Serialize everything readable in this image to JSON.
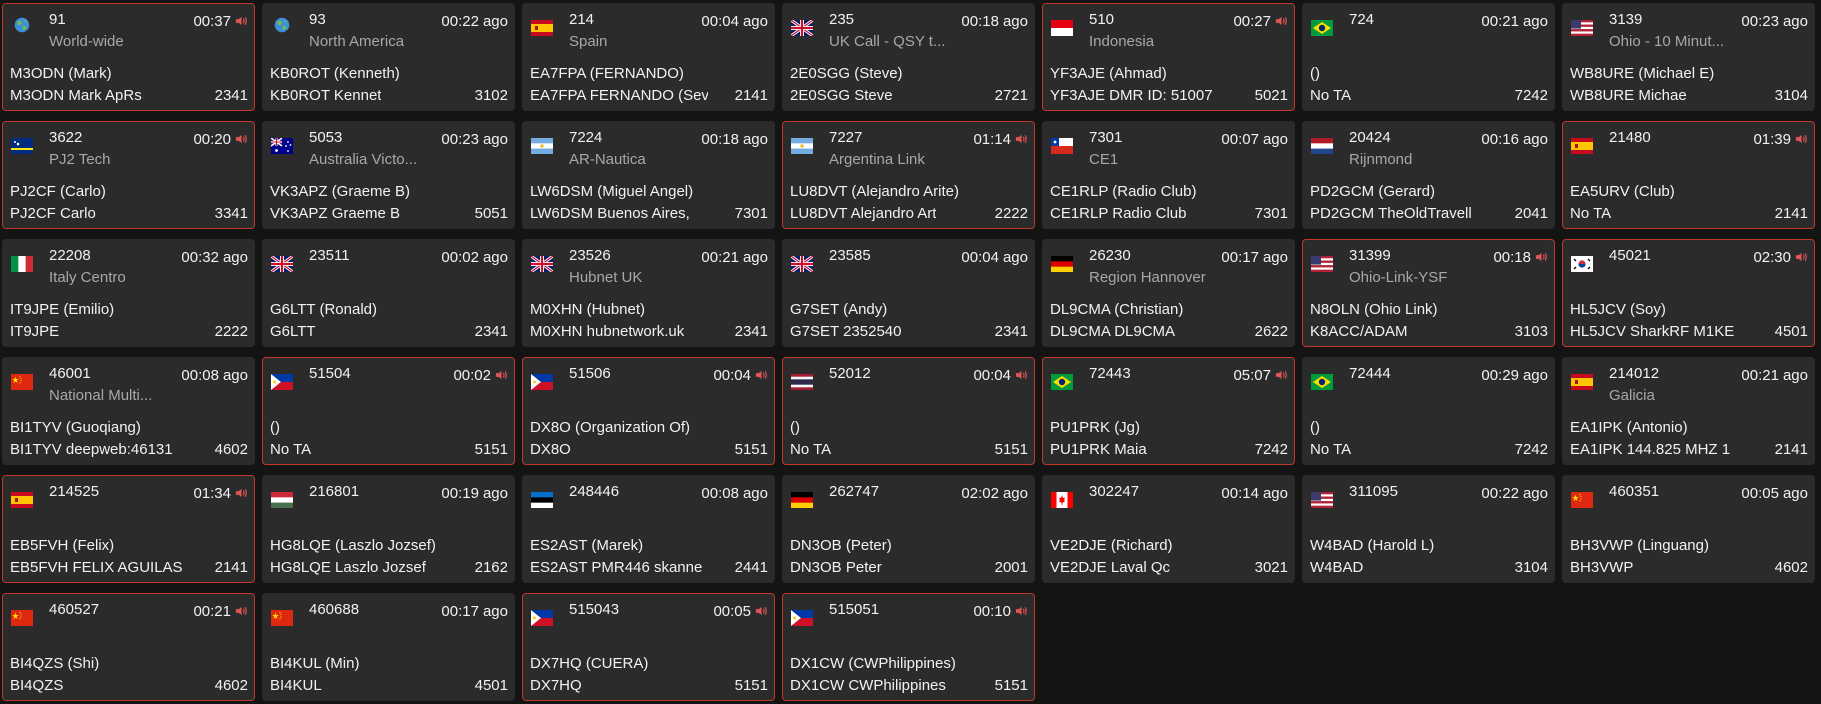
{
  "accent_active_border": "#c0392b",
  "cards": [
    {
      "tg": "91",
      "tg_name": "World-wide",
      "time": "00:37",
      "ago": "",
      "talking": true,
      "flag": "globe-icon",
      "callsign": "M3ODN (Mark)",
      "ta": "M3ODN Mark ApRs",
      "id": "2341"
    },
    {
      "tg": "93",
      "tg_name": "North America",
      "time": "00:22",
      "ago": "ago",
      "talking": false,
      "flag": "globe-icon",
      "callsign": "KB0ROT (Kenneth)",
      "ta": "KB0ROT Kennet",
      "id": "3102"
    },
    {
      "tg": "214",
      "tg_name": "Spain",
      "time": "00:04",
      "ago": "ago",
      "talking": false,
      "flag": "flag-es",
      "callsign": "EA7FPA (FERNANDO)",
      "ta": "EA7FPA FERNANDO (Sev",
      "id": "2141"
    },
    {
      "tg": "235",
      "tg_name": "UK Call - QSY t...",
      "time": "00:18",
      "ago": "ago",
      "talking": false,
      "flag": "flag-gb",
      "callsign": "2E0SGG (Steve)",
      "ta": "2E0SGG Steve",
      "id": "2721"
    },
    {
      "tg": "510",
      "tg_name": "Indonesia",
      "time": "00:27",
      "ago": "",
      "talking": true,
      "flag": "flag-id",
      "callsign": "YF3AJE (Ahmad)",
      "ta": "YF3AJE DMR ID: 51007",
      "id": "5021"
    },
    {
      "tg": "724",
      "tg_name": "",
      "time": "00:21",
      "ago": "ago",
      "talking": false,
      "flag": "flag-br",
      "callsign": "()",
      "ta": "No TA",
      "id": "7242"
    },
    {
      "tg": "3139",
      "tg_name": "Ohio - 10 Minut...",
      "time": "00:23",
      "ago": "ago",
      "talking": false,
      "flag": "flag-us",
      "callsign": "WB8URE (Michael E)",
      "ta": "WB8URE Michae",
      "id": "3104"
    },
    {
      "tg": "3622",
      "tg_name": "PJ2 Tech",
      "time": "00:20",
      "ago": "",
      "talking": true,
      "flag": "flag-cw",
      "callsign": "PJ2CF (Carlo)",
      "ta": "PJ2CF Carlo",
      "id": "3341"
    },
    {
      "tg": "5053",
      "tg_name": "Australia Victo...",
      "time": "00:23",
      "ago": "ago",
      "talking": false,
      "flag": "flag-au",
      "callsign": "VK3APZ (Graeme B)",
      "ta": "VK3APZ Graeme B",
      "id": "5051"
    },
    {
      "tg": "7224",
      "tg_name": "AR-Nautica",
      "time": "00:18",
      "ago": "ago",
      "talking": false,
      "flag": "flag-ar",
      "callsign": "LW6DSM (Miguel Angel)",
      "ta": "LW6DSM Buenos Aires,",
      "id": "7301"
    },
    {
      "tg": "7227",
      "tg_name": "Argentina Link",
      "time": "01:14",
      "ago": "",
      "talking": true,
      "flag": "flag-ar",
      "callsign": "LU8DVT (Alejandro Arite)",
      "ta": "LU8DVT Alejandro Art",
      "id": "2222"
    },
    {
      "tg": "7301",
      "tg_name": "CE1",
      "time": "00:07",
      "ago": "ago",
      "talking": false,
      "flag": "flag-cl",
      "callsign": "CE1RLP (Radio Club)",
      "ta": "CE1RLP Radio Club",
      "id": "7301"
    },
    {
      "tg": "20424",
      "tg_name": "Rijnmond",
      "time": "00:16",
      "ago": "ago",
      "talking": false,
      "flag": "flag-nl",
      "callsign": "PD2GCM (Gerard)",
      "ta": "PD2GCM TheOldTravell",
      "id": "2041"
    },
    {
      "tg": "21480",
      "tg_name": "",
      "time": "01:39",
      "ago": "",
      "talking": true,
      "flag": "flag-es",
      "callsign": "EA5URV (Club)",
      "ta": "No TA",
      "id": "2141"
    },
    {
      "tg": "22208",
      "tg_name": "Italy Centro",
      "time": "00:32",
      "ago": "ago",
      "talking": false,
      "flag": "flag-it",
      "callsign": "IT9JPE (Emilio)",
      "ta": "IT9JPE",
      "id": "2222"
    },
    {
      "tg": "23511",
      "tg_name": "",
      "time": "00:02",
      "ago": "ago",
      "talking": false,
      "flag": "flag-gb",
      "callsign": "G6LTT (Ronald)",
      "ta": "G6LTT",
      "id": "2341"
    },
    {
      "tg": "23526",
      "tg_name": "Hubnet UK",
      "time": "00:21",
      "ago": "ago",
      "talking": false,
      "flag": "flag-gb",
      "callsign": "M0XHN (Hubnet)",
      "ta": "M0XHN hubnetwork.uk",
      "id": "2341"
    },
    {
      "tg": "23585",
      "tg_name": "",
      "time": "00:04",
      "ago": "ago",
      "talking": false,
      "flag": "flag-gb",
      "callsign": "G7SET (Andy)",
      "ta": "G7SET 2352540",
      "id": "2341"
    },
    {
      "tg": "26230",
      "tg_name": "Region Hannover",
      "time": "00:17",
      "ago": "ago",
      "talking": false,
      "flag": "flag-de",
      "callsign": "DL9CMA (Christian)",
      "ta": "DL9CMA DL9CMA",
      "id": "2622"
    },
    {
      "tg": "31399",
      "tg_name": "Ohio-Link-YSF",
      "time": "00:18",
      "ago": "",
      "talking": true,
      "flag": "flag-us",
      "callsign": "N8OLN (Ohio Link)",
      "ta": "K8ACC/ADAM",
      "id": "3103"
    },
    {
      "tg": "45021",
      "tg_name": "",
      "time": "02:30",
      "ago": "",
      "talking": true,
      "flag": "flag-kr",
      "callsign": "HL5JCV (Soy)",
      "ta": "HL5JCV SharkRF M1KE",
      "id": "4501"
    },
    {
      "tg": "46001",
      "tg_name": "National Multi...",
      "time": "00:08",
      "ago": "ago",
      "talking": false,
      "flag": "flag-cn",
      "callsign": "BI1TYV (Guoqiang)",
      "ta": "BI1TYV deepweb:46131",
      "id": "4602"
    },
    {
      "tg": "51504",
      "tg_name": "",
      "time": "00:02",
      "ago": "",
      "talking": true,
      "flag": "flag-ph",
      "callsign": "()",
      "ta": "No TA",
      "id": "5151"
    },
    {
      "tg": "51506",
      "tg_name": "",
      "time": "00:04",
      "ago": "",
      "talking": true,
      "flag": "flag-ph",
      "callsign": "DX8O (Organization Of)",
      "ta": "DX8O",
      "id": "5151"
    },
    {
      "tg": "52012",
      "tg_name": "",
      "time": "00:04",
      "ago": "",
      "talking": true,
      "flag": "flag-th",
      "callsign": "()",
      "ta": "No TA",
      "id": "5151"
    },
    {
      "tg": "72443",
      "tg_name": "",
      "time": "05:07",
      "ago": "",
      "talking": true,
      "flag": "flag-br",
      "callsign": "PU1PRK (Jg)",
      "ta": "PU1PRK Maia",
      "id": "7242"
    },
    {
      "tg": "72444",
      "tg_name": "",
      "time": "00:29",
      "ago": "ago",
      "talking": false,
      "flag": "flag-br",
      "callsign": "()",
      "ta": "No TA",
      "id": "7242"
    },
    {
      "tg": "214012",
      "tg_name": "Galicia",
      "time": "00:21",
      "ago": "ago",
      "talking": false,
      "flag": "flag-es",
      "callsign": "EA1IPK (Antonio)",
      "ta": "EA1IPK 144.825 MHZ 1",
      "id": "2141"
    },
    {
      "tg": "214525",
      "tg_name": "",
      "time": "01:34",
      "ago": "",
      "talking": true,
      "flag": "flag-es",
      "callsign": "EB5FVH (Felix)",
      "ta": "EB5FVH FELIX AGUILAS",
      "id": "2141"
    },
    {
      "tg": "216801",
      "tg_name": "",
      "time": "00:19",
      "ago": "ago",
      "talking": false,
      "flag": "flag-hu",
      "callsign": "HG8LQE (Laszlo Jozsef)",
      "ta": "HG8LQE Laszlo Jozsef",
      "id": "2162"
    },
    {
      "tg": "248446",
      "tg_name": "",
      "time": "00:08",
      "ago": "ago",
      "talking": false,
      "flag": "flag-ee",
      "callsign": "ES2AST (Marek)",
      "ta": "ES2AST PMR446 skanne",
      "id": "2441"
    },
    {
      "tg": "262747",
      "tg_name": "",
      "time": "02:02",
      "ago": "ago",
      "talking": false,
      "flag": "flag-de",
      "callsign": "DN3OB (Peter)",
      "ta": "DN3OB Peter",
      "id": "2001"
    },
    {
      "tg": "302247",
      "tg_name": "",
      "time": "00:14",
      "ago": "ago",
      "talking": false,
      "flag": "flag-ca",
      "callsign": "VE2DJE (Richard)",
      "ta": "VE2DJE Laval Qc",
      "id": "3021"
    },
    {
      "tg": "311095",
      "tg_name": "",
      "time": "00:22",
      "ago": "ago",
      "talking": false,
      "flag": "flag-us",
      "callsign": "W4BAD (Harold L)",
      "ta": "W4BAD",
      "id": "3104"
    },
    {
      "tg": "460351",
      "tg_name": "",
      "time": "00:05",
      "ago": "ago",
      "talking": false,
      "flag": "flag-cn",
      "callsign": "BH3VWP (Linguang)",
      "ta": "BH3VWP",
      "id": "4602"
    },
    {
      "tg": "460527",
      "tg_name": "",
      "time": "00:21",
      "ago": "",
      "talking": true,
      "flag": "flag-cn",
      "callsign": "BI4QZS (Shi)",
      "ta": "BI4QZS",
      "id": "4602"
    },
    {
      "tg": "460688",
      "tg_name": "",
      "time": "00:17",
      "ago": "ago",
      "talking": false,
      "flag": "flag-cn",
      "callsign": "BI4KUL (Min)",
      "ta": "BI4KUL",
      "id": "4501"
    },
    {
      "tg": "515043",
      "tg_name": "",
      "time": "00:05",
      "ago": "",
      "talking": true,
      "flag": "flag-ph",
      "callsign": "DX7HQ (CUERA)",
      "ta": "DX7HQ",
      "id": "5151"
    },
    {
      "tg": "515051",
      "tg_name": "",
      "time": "00:10",
      "ago": "",
      "talking": true,
      "flag": "flag-ph",
      "callsign": "DX1CW (CWPhilippines)",
      "ta": "DX1CW CWPhilippines",
      "id": "5151"
    }
  ]
}
